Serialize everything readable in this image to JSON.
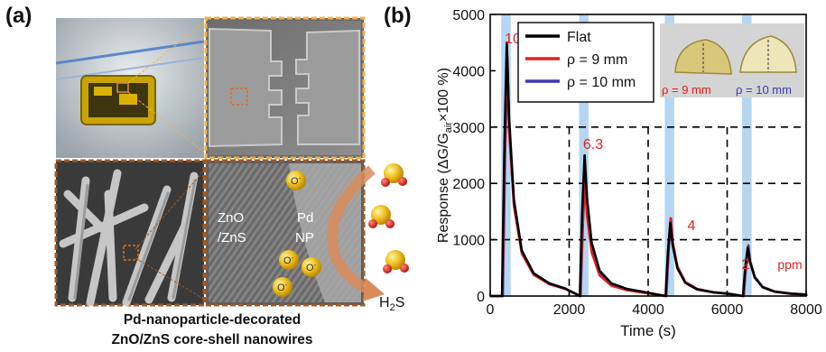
{
  "panel_a": {
    "label": "(a)",
    "tem": {
      "material": "ZnO\n/ZnS",
      "np": "Pd\nNP"
    },
    "ions": [
      "O-",
      "O-",
      "O-",
      "O-"
    ],
    "gas": "H2S",
    "caption_line1": "Pd-nanoparticle-decorated",
    "caption_line2": "ZnO/ZnS  core-shell nanowires"
  },
  "panel_b": {
    "label": "(b)",
    "inset": {
      "label_9": "ρ = 9 mm",
      "label_10": "ρ = 10 mm"
    }
  },
  "chart_data": {
    "type": "line",
    "xlabel": "Time (s)",
    "ylabel": "Response (ΔG/G_air×100 %)",
    "xlim": [
      0,
      8000
    ],
    "ylim": [
      0,
      5000
    ],
    "xticks": [
      0,
      2000,
      4000,
      6000,
      8000
    ],
    "yticks": [
      0,
      1000,
      2000,
      3000,
      4000,
      5000
    ],
    "grid": "dashed",
    "legend_position": "top-left",
    "series": [
      {
        "name": "Flat",
        "color": "#000000",
        "peaks": [
          4500,
          2500,
          1300,
          860
        ]
      },
      {
        "name": "ρ = 9 mm",
        "color": "#e02020",
        "peaks": [
          4200,
          2050,
          1380,
          870
        ]
      },
      {
        "name": "ρ = 10 mm",
        "color": "#3a3ab0",
        "peaks": [
          4250,
          2200,
          1380,
          900
        ]
      }
    ],
    "pulse_times": [
      400,
      2370,
      4540,
      6500
    ],
    "pulse_color": "#a8cfee",
    "annotations": [
      "10",
      "6.3",
      "4",
      "2",
      "ppm"
    ]
  }
}
